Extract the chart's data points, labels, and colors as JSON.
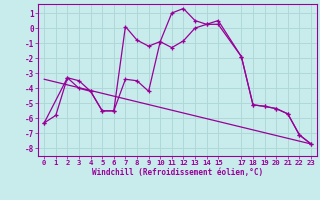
{
  "xlabel": "Windchill (Refroidissement éolien,°C)",
  "xlim": [
    -0.5,
    23.5
  ],
  "ylim": [
    -8.5,
    1.6
  ],
  "yticks": [
    1,
    0,
    -1,
    -2,
    -3,
    -4,
    -5,
    -6,
    -7,
    -8
  ],
  "xticks": [
    0,
    1,
    2,
    3,
    4,
    5,
    6,
    7,
    8,
    9,
    10,
    11,
    12,
    13,
    14,
    15,
    17,
    18,
    19,
    20,
    21,
    22,
    23
  ],
  "xtick_labels": [
    "0",
    "1",
    "2",
    "3",
    "4",
    "5",
    "6",
    "7",
    "8",
    "9",
    "10",
    "11",
    "12",
    "13",
    "14",
    "15",
    "17",
    "18",
    "19",
    "20",
    "21",
    "22",
    "23"
  ],
  "bg_color": "#c8ecec",
  "line_color": "#990099",
  "grid_color": "#b0d8d8",
  "curve1_x": [
    0,
    1,
    2,
    3,
    4,
    5,
    6,
    7,
    8,
    9,
    10,
    11,
    12,
    13,
    14,
    15,
    17,
    18,
    19,
    20,
    21,
    22,
    23
  ],
  "curve1_y": [
    -6.3,
    -5.8,
    -3.3,
    -4.0,
    -4.2,
    -5.5,
    -5.5,
    0.1,
    -0.8,
    -1.2,
    -0.9,
    1.0,
    1.3,
    0.5,
    0.25,
    0.25,
    -1.9,
    -5.1,
    -5.2,
    -5.35,
    -5.7,
    -7.1,
    -7.7
  ],
  "curve2_x": [
    0,
    2,
    3,
    4,
    5,
    6,
    7,
    8,
    9,
    10,
    11,
    12,
    13,
    14,
    15,
    17,
    18,
    19,
    20,
    21,
    22,
    23
  ],
  "curve2_y": [
    -6.3,
    -3.3,
    -3.5,
    -4.2,
    -5.5,
    -5.5,
    -3.4,
    -3.5,
    -4.2,
    -0.9,
    -1.3,
    -0.85,
    0.0,
    0.25,
    0.5,
    -1.9,
    -5.1,
    -5.2,
    -5.35,
    -5.7,
    -7.1,
    -7.7
  ],
  "trendline_x": [
    0,
    23
  ],
  "trendline_y": [
    -3.4,
    -7.7
  ],
  "marker": "+"
}
